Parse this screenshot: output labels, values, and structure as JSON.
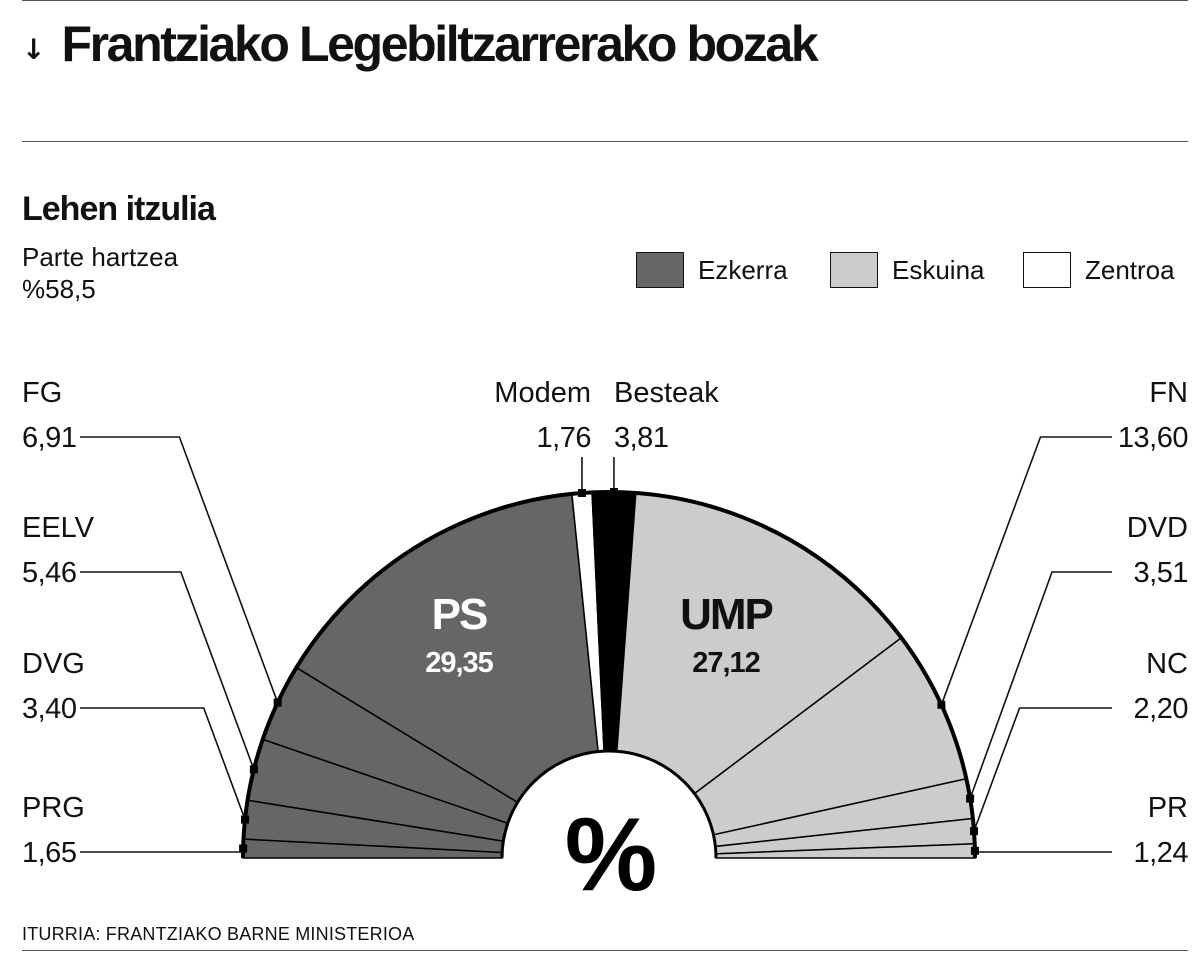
{
  "title": {
    "arrow_icon": "down-arrow-icon",
    "text": "Frantziako Legebiltzarrerako bozak"
  },
  "subtitle": "Lehen itzulia",
  "turnout": {
    "label": "Parte hartzea",
    "value": "%58,5"
  },
  "legend": [
    {
      "label": "Ezkerra",
      "color": "#666666"
    },
    {
      "label": "Eskuina",
      "color": "#cccccc"
    },
    {
      "label": "Zentroa",
      "color": "#ffffff"
    }
  ],
  "center_symbol": "%",
  "source": "ITURRIA: FRANTZIAKO BARNE MINISTERIOA",
  "chart_data": {
    "type": "pie",
    "variant": "semicircle-hemicycle",
    "unit": "%",
    "slices": [
      {
        "name": "PRG",
        "value": 1.65,
        "label": "1,65",
        "group": "Ezkerra",
        "color": "#666666"
      },
      {
        "name": "DVG",
        "value": 3.4,
        "label": "3,40",
        "group": "Ezkerra",
        "color": "#666666"
      },
      {
        "name": "EELV",
        "value": 5.46,
        "label": "5,46",
        "group": "Ezkerra",
        "color": "#666666"
      },
      {
        "name": "FG",
        "value": 6.91,
        "label": "6,91",
        "group": "Ezkerra",
        "color": "#666666"
      },
      {
        "name": "PS",
        "value": 29.35,
        "label": "29,35",
        "group": "Ezkerra",
        "color": "#666666"
      },
      {
        "name": "Modem",
        "value": 1.76,
        "label": "1,76",
        "group": "Zentroa",
        "color": "#ffffff"
      },
      {
        "name": "Besteak",
        "value": 3.81,
        "label": "3,81",
        "group": "",
        "color": "#000000"
      },
      {
        "name": "UMP",
        "value": 27.12,
        "label": "27,12",
        "group": "Eskuina",
        "color": "#cccccc"
      },
      {
        "name": "FN",
        "value": 13.6,
        "label": "13,60",
        "group": "Eskuina",
        "color": "#cccccc"
      },
      {
        "name": "DVD",
        "value": 3.51,
        "label": "3,51",
        "group": "Eskuina",
        "color": "#cccccc"
      },
      {
        "name": "NC",
        "value": 2.2,
        "label": "2,20",
        "group": "Eskuina",
        "color": "#cccccc"
      },
      {
        "name": "PR",
        "value": 1.24,
        "label": "1,24",
        "group": "Eskuina",
        "color": "#cccccc"
      }
    ]
  }
}
